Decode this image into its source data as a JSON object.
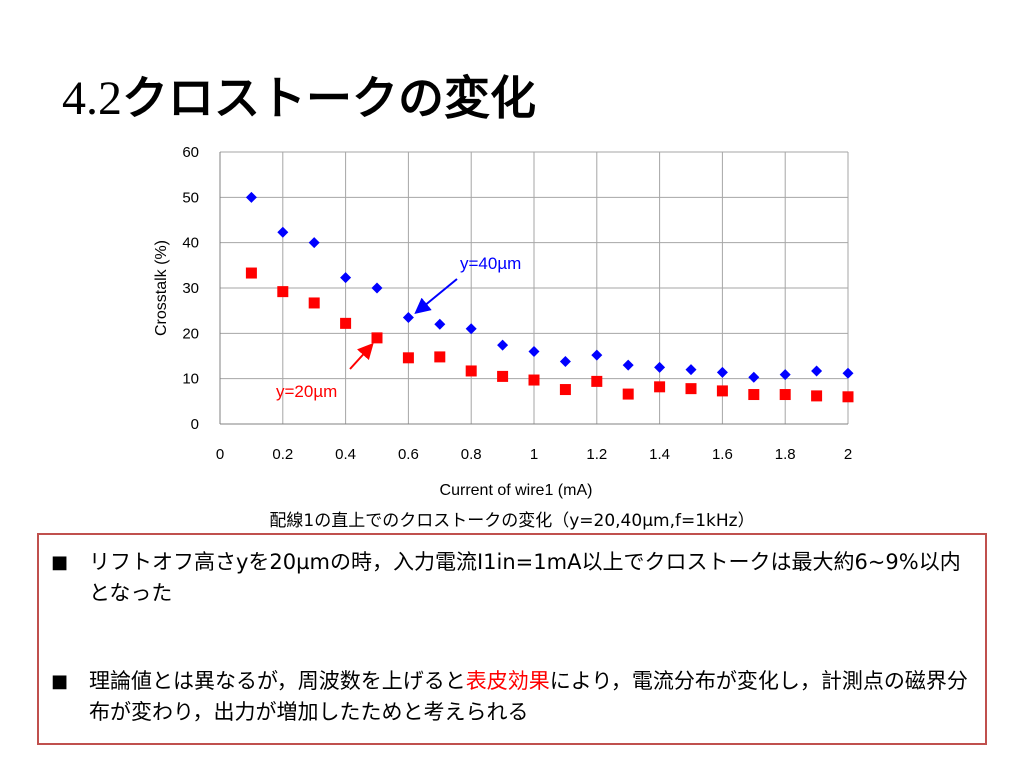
{
  "slide": {
    "title_num": "4.2",
    "title_text": "クロストークの変化"
  },
  "chart_data": {
    "type": "scatter",
    "xlabel": "Current of wire1 (mA)",
    "ylabel": "Crosstalk (%)",
    "xlim": [
      0,
      2
    ],
    "ylim": [
      0,
      60
    ],
    "x_ticks": [
      "0",
      "0.2",
      "0.4",
      "0.6",
      "0.8",
      "1",
      "1.2",
      "1.4",
      "1.6",
      "1.8",
      "2"
    ],
    "y_ticks": [
      "0",
      "10",
      "20",
      "30",
      "40",
      "50",
      "60"
    ],
    "grid": true,
    "series": [
      {
        "name": "y=40µm",
        "marker": "diamond",
        "color": "#0000ff",
        "x": [
          0.1,
          0.2,
          0.3,
          0.4,
          0.5,
          0.6,
          0.7,
          0.8,
          0.9,
          1.0,
          1.1,
          1.2,
          1.3,
          1.4,
          1.5,
          1.6,
          1.7,
          1.8,
          1.9,
          2.0
        ],
        "y": [
          50.0,
          42.3,
          40.0,
          32.3,
          30.0,
          23.5,
          22.0,
          21.0,
          17.4,
          16.0,
          13.8,
          15.2,
          13.0,
          12.5,
          12.0,
          11.4,
          10.3,
          10.9,
          11.7,
          11.2
        ]
      },
      {
        "name": "y=20µm",
        "marker": "square",
        "color": "#ff0000",
        "x": [
          0.1,
          0.2,
          0.3,
          0.4,
          0.5,
          0.6,
          0.7,
          0.8,
          0.9,
          1.0,
          1.1,
          1.2,
          1.3,
          1.4,
          1.5,
          1.6,
          1.7,
          1.8,
          1.9,
          2.0
        ],
        "y": [
          33.3,
          29.2,
          26.7,
          22.2,
          19.0,
          14.6,
          14.8,
          11.7,
          10.5,
          9.7,
          7.6,
          9.4,
          6.6,
          8.2,
          7.8,
          7.3,
          6.5,
          6.5,
          6.2,
          6.0
        ]
      }
    ],
    "annotations": [
      {
        "text": "y=40µm",
        "color": "#0000ff",
        "points_to": [
          0.6,
          23.5
        ]
      },
      {
        "text": "y=20µm",
        "color": "#ff0000",
        "points_to": [
          0.5,
          19.0
        ]
      }
    ],
    "caption": "配線1の直上でのクロストークの変化（y=20,40µm,f=1kHz）"
  },
  "notes": {
    "bullet_mark": "■",
    "bullet1": "リフトオフ高さyを20µmの時，入力電流I1in=1mA以上でクロストークは最大約6~9%以内となった",
    "bullet2_before": "理論値とは異なるが，周波数を上げると",
    "bullet2_highlight": "表皮効果",
    "bullet2_after": "により，電流分布が変化し，計測点の磁界分布が変わり，出力が増加したためと考えられる"
  }
}
